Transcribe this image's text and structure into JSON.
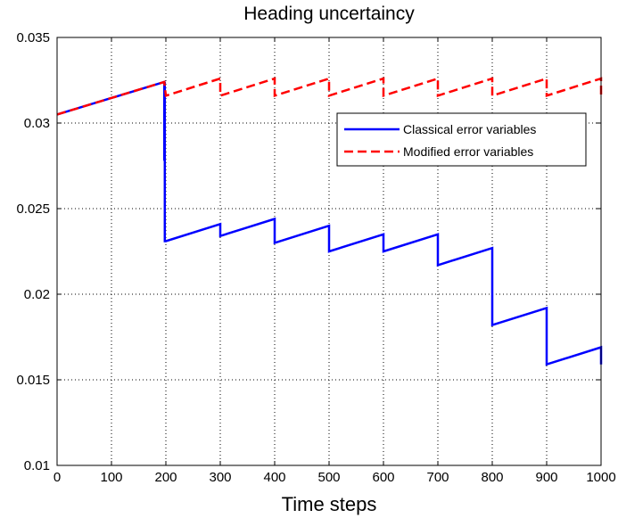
{
  "chart_data": {
    "type": "line",
    "title": "Heading uncertaincy",
    "xlabel": "Time steps",
    "ylabel": "",
    "xlim": [
      0,
      1000
    ],
    "ylim": [
      0.01,
      0.035
    ],
    "xticks": [
      0,
      100,
      200,
      300,
      400,
      500,
      600,
      700,
      800,
      900,
      1000
    ],
    "xtick_labels": [
      "0",
      "100",
      "200",
      "300",
      "400",
      "500",
      "600",
      "700",
      "800",
      "900",
      "1000"
    ],
    "yticks": [
      0.01,
      0.015,
      0.02,
      0.025,
      0.03,
      0.035
    ],
    "ytick_labels": [
      "0.01",
      "0.015",
      "0.02",
      "0.025",
      "0.03",
      "0.035"
    ],
    "grid": true,
    "legend_position": "top-right",
    "series": [
      {
        "name": "Classical error variables",
        "color": "#0000ff",
        "style": "solid",
        "x": [
          0,
          197,
          197,
          198,
          198,
          200,
          300,
          300,
          400,
          400,
          500,
          500,
          600,
          600,
          700,
          700,
          800,
          800,
          900,
          900,
          1000,
          1000
        ],
        "y": [
          0.0305,
          0.0324,
          0.0278,
          0.0324,
          0.0231,
          0.0231,
          0.0241,
          0.0234,
          0.0244,
          0.023,
          0.024,
          0.0225,
          0.0235,
          0.0225,
          0.0235,
          0.0217,
          0.0227,
          0.0182,
          0.0192,
          0.0159,
          0.0169,
          0.0159
        ]
      },
      {
        "name": "Modified error variables",
        "color": "#ff0000",
        "style": "dashed",
        "x": [
          0,
          197,
          200,
          300,
          300,
          400,
          400,
          500,
          500,
          600,
          600,
          700,
          700,
          800,
          800,
          900,
          900,
          1000,
          1000
        ],
        "y": [
          0.0305,
          0.0324,
          0.0316,
          0.0326,
          0.0316,
          0.0326,
          0.0316,
          0.0326,
          0.0316,
          0.0326,
          0.0316,
          0.0326,
          0.0316,
          0.0326,
          0.0316,
          0.0326,
          0.0316,
          0.0326,
          0.0316
        ]
      }
    ]
  }
}
